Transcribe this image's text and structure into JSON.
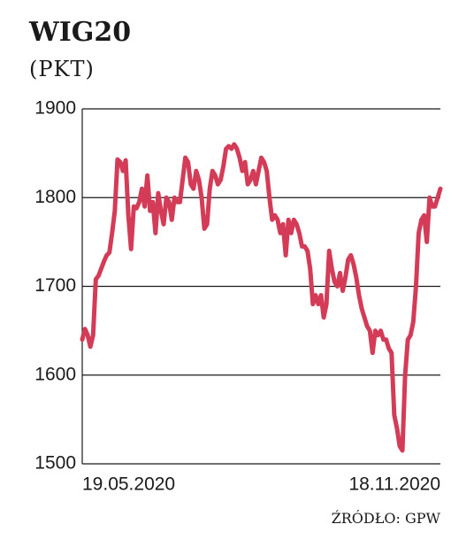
{
  "chart_data": {
    "type": "line",
    "title": "WIG20",
    "subtitle": "(PKT)",
    "source": "ŹRÓDŁO: GPW",
    "categories": [
      "19.05.2020",
      null,
      null,
      null,
      null,
      null,
      null,
      null,
      null,
      null,
      null,
      null,
      null,
      null,
      null,
      null,
      null,
      null,
      null,
      null,
      null,
      null,
      null,
      null,
      null,
      null,
      null,
      null,
      null,
      null,
      null,
      null,
      null,
      null,
      null,
      null,
      null,
      null,
      null,
      null,
      null,
      null,
      null,
      null,
      null,
      null,
      null,
      null,
      null,
      null,
      null,
      null,
      null,
      null,
      null,
      null,
      null,
      null,
      null,
      null,
      null,
      null,
      null,
      null,
      null,
      null,
      null,
      null,
      null,
      null,
      null,
      null,
      null,
      null,
      null,
      null,
      null,
      null,
      null,
      null,
      null,
      null,
      null,
      null,
      null,
      null,
      null,
      null,
      null,
      null,
      null,
      null,
      null,
      null,
      null,
      null,
      null,
      null,
      null,
      null,
      null,
      null,
      null,
      null,
      null,
      null,
      null,
      null,
      null,
      null,
      null,
      null,
      null,
      null,
      null,
      null,
      null,
      null,
      null,
      null,
      null,
      null,
      null,
      null,
      null,
      null,
      null,
      null,
      null,
      null,
      null,
      null,
      "18.11.2020"
    ],
    "series": [
      {
        "name": "WIG20",
        "color": "#d43b57",
        "values": [
          1640,
          1652,
          1645,
          1632,
          1645,
          1708,
          1712,
          1720,
          1728,
          1735,
          1738,
          1760,
          1785,
          1843,
          1840,
          1830,
          1842,
          1780,
          1742,
          1790,
          1788,
          1795,
          1810,
          1790,
          1825,
          1785,
          1795,
          1760,
          1805,
          1785,
          1770,
          1800,
          1795,
          1775,
          1800,
          1795,
          1795,
          1820,
          1845,
          1840,
          1815,
          1810,
          1830,
          1820,
          1800,
          1765,
          1770,
          1810,
          1830,
          1825,
          1815,
          1820,
          1835,
          1855,
          1858,
          1855,
          1860,
          1855,
          1845,
          1830,
          1840,
          1815,
          1820,
          1830,
          1815,
          1830,
          1845,
          1840,
          1830,
          1800,
          1775,
          1780,
          1775,
          1760,
          1770,
          1735,
          1775,
          1760,
          1775,
          1770,
          1760,
          1745,
          1745,
          1740,
          1720,
          1680,
          1690,
          1680,
          1690,
          1665,
          1680,
          1740,
          1720,
          1705,
          1700,
          1715,
          1695,
          1710,
          1730,
          1735,
          1725,
          1710,
          1690,
          1675,
          1665,
          1655,
          1650,
          1625,
          1650,
          1645,
          1650,
          1640,
          1640,
          1630,
          1625,
          1555,
          1540,
          1520,
          1515,
          1600,
          1640,
          1645,
          1660,
          1700,
          1760,
          1775,
          1780,
          1750,
          1800,
          1790,
          1790,
          1800,
          1810
        ]
      }
    ],
    "ylim": [
      1500,
      1900
    ],
    "yticks": [
      1500,
      1600,
      1700,
      1800,
      1900
    ],
    "grid": true
  }
}
